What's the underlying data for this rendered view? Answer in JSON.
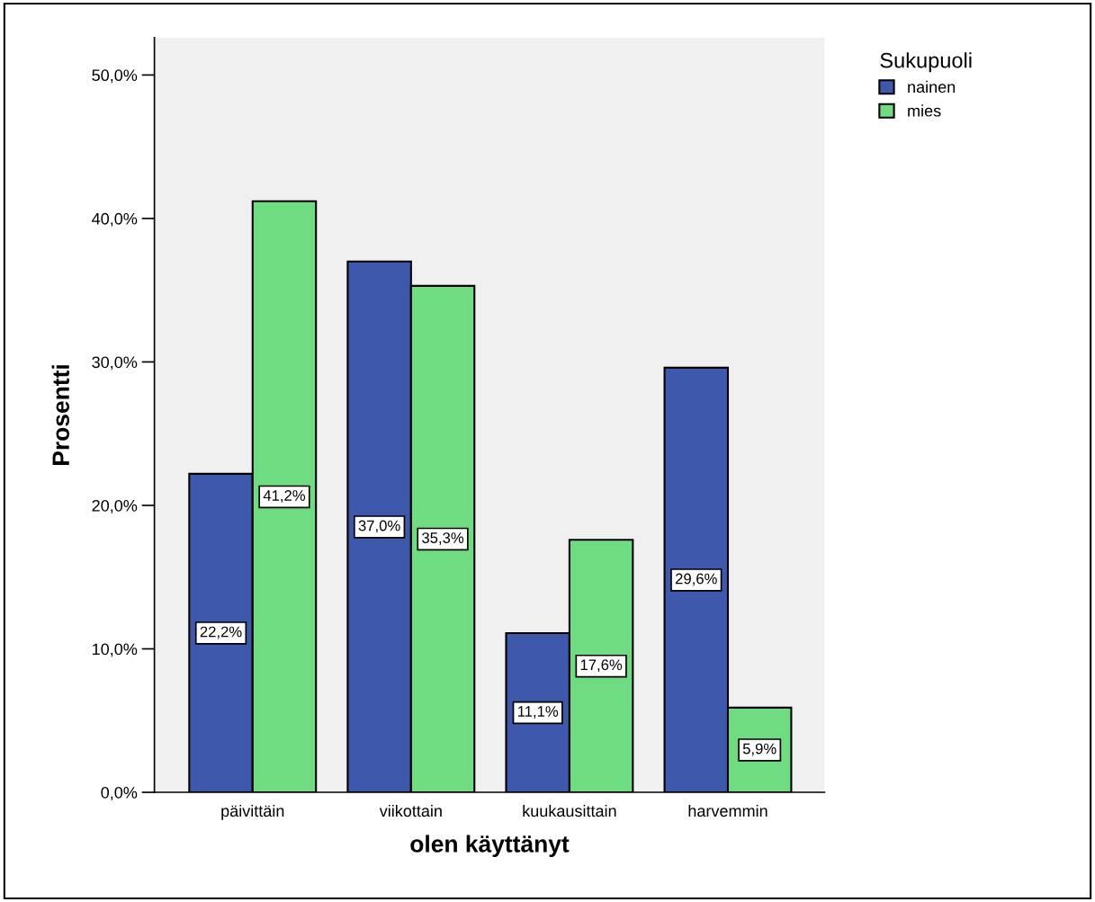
{
  "chart_data": {
    "type": "bar",
    "xlabel": "olen käyttänyt",
    "ylabel": "Prosentti",
    "legend_title": "Sukupuoli",
    "legend": "top right",
    "categories": [
      "päivittäin",
      "viikottain",
      "kuukausittain",
      "harvemmin"
    ],
    "series": [
      {
        "name": "nainen",
        "color": "#3e58ac",
        "values": [
          22.2,
          37.0,
          11.1,
          29.6
        ],
        "value_labels": [
          "22,2%",
          "37,0%",
          "11,1%",
          "29,6%"
        ]
      },
      {
        "name": "mies",
        "color": "#70dc82",
        "values": [
          41.2,
          35.3,
          17.6,
          5.9
        ],
        "value_labels": [
          "41,2%",
          "35,3%",
          "17,6%",
          "5,9%"
        ]
      }
    ],
    "ylim": [
      0,
      52.6
    ],
    "yticks": [
      {
        "value": 0,
        "label": "0,0%"
      },
      {
        "value": 10,
        "label": "10,0%"
      },
      {
        "value": 20,
        "label": "20,0%"
      },
      {
        "value": 30,
        "label": "30,0%"
      },
      {
        "value": 40,
        "label": "40,0%"
      },
      {
        "value": 50,
        "label": "50,0%"
      }
    ],
    "grid": false
  }
}
